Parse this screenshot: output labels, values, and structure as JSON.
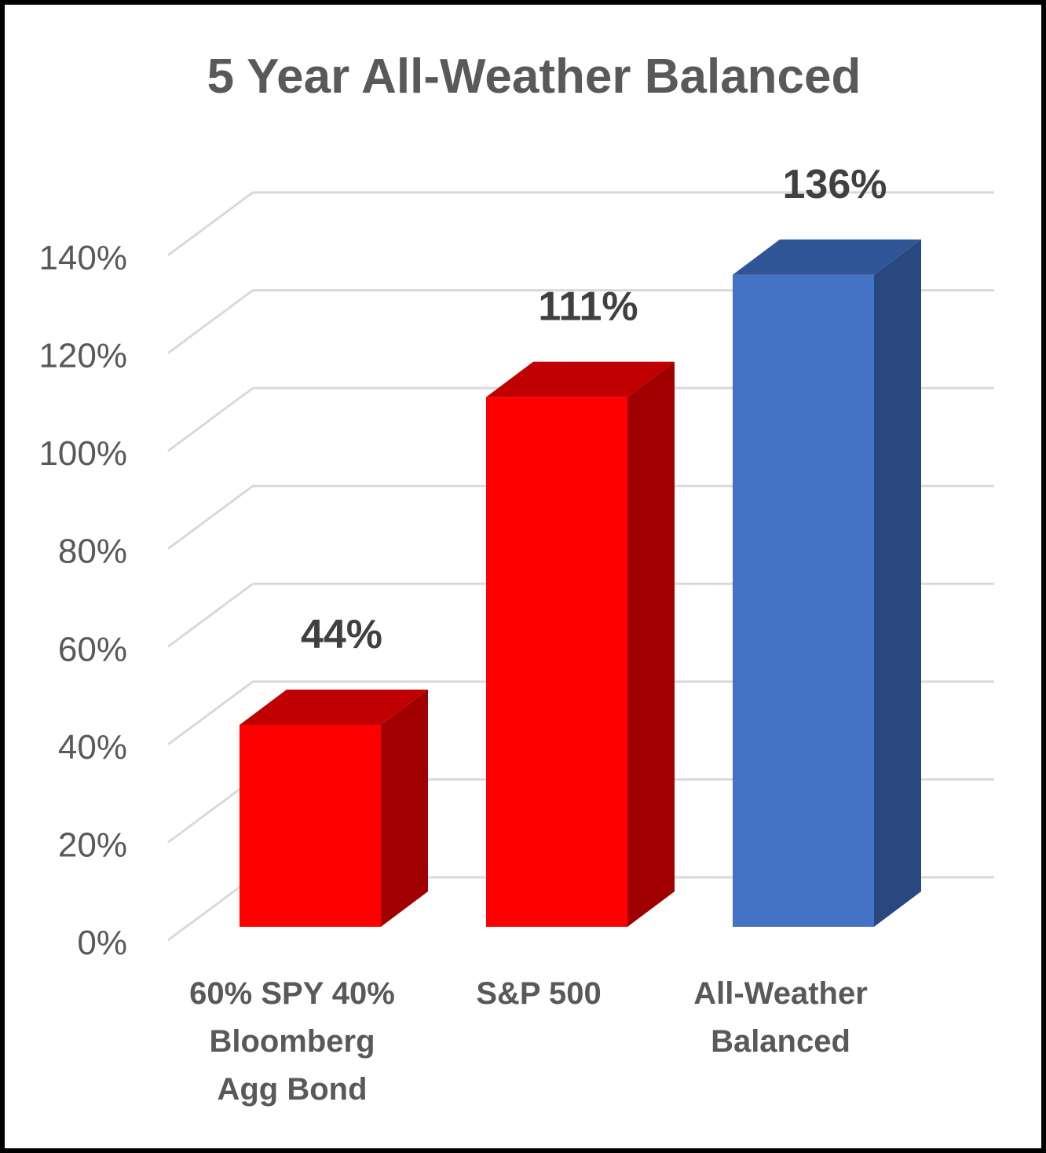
{
  "chart_data": {
    "type": "bar",
    "style": "3d-column",
    "title": "5 Year All-Weather Balanced",
    "xlabel": "",
    "ylabel": "",
    "categories": [
      "60% SPY 40% Bloomberg Agg Bond",
      "S&P 500",
      "All-Weather Balanced"
    ],
    "category_lines": [
      [
        "60% SPY 40%",
        "Bloomberg",
        "Agg Bond"
      ],
      [
        "S&P 500"
      ],
      [
        "All-Weather",
        "Balanced"
      ]
    ],
    "values": [
      44,
      111,
      136
    ],
    "value_labels": [
      "44%",
      "111%",
      "136%"
    ],
    "ylim": [
      0,
      140
    ],
    "yticks": [
      0,
      20,
      40,
      60,
      80,
      100,
      120,
      140
    ],
    "ytick_labels": [
      "0%",
      "20%",
      "40%",
      "60%",
      "80%",
      "100%",
      "120%",
      "140%"
    ],
    "grid": true,
    "legend": "none",
    "colors": {
      "bars": [
        {
          "front": "#FF0000",
          "top": "#C00000",
          "side": "#A00000"
        },
        {
          "front": "#FF0000",
          "top": "#C00000",
          "side": "#A00000"
        },
        {
          "front": "#4472C4",
          "top": "#2F5597",
          "side": "#2A4880"
        }
      ],
      "grid": "#D9D9D9",
      "text": "#595959",
      "data_label": "#404040",
      "border": "#000000"
    }
  }
}
